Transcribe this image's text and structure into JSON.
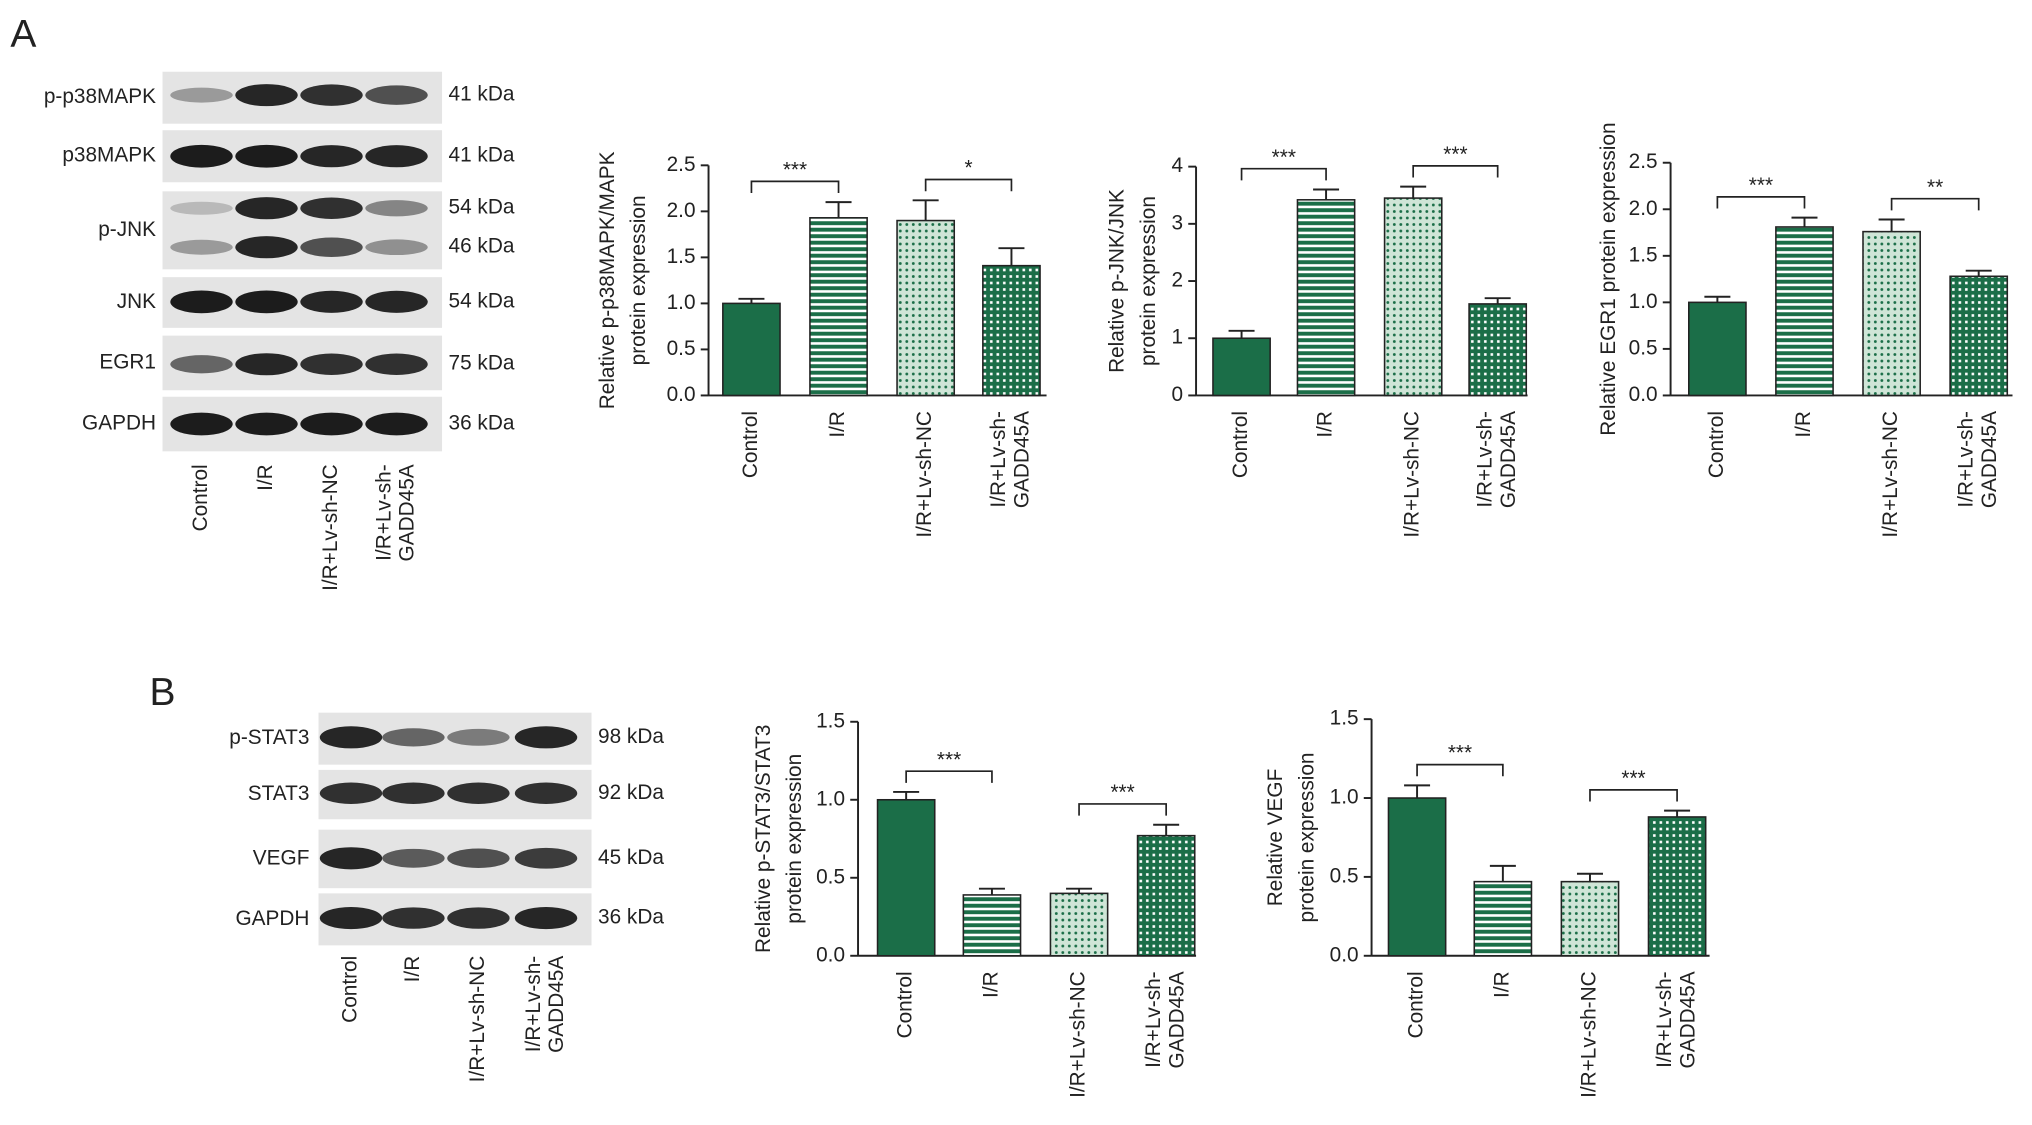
{
  "panels": [
    "A",
    "B"
  ],
  "blots": [
    {
      "rows": [
        {
          "label": "p-p38MAPK",
          "kda": [
            "41 kDa"
          ]
        },
        {
          "label": "p38MAPK",
          "kda": [
            "41 kDa"
          ]
        },
        {
          "label": "p-JNK",
          "kda": [
            "54 kDa",
            "46 kDa"
          ]
        },
        {
          "label": "JNK",
          "kda": [
            "54 kDa"
          ]
        },
        {
          "label": "EGR1",
          "kda": [
            "75 kDa"
          ]
        },
        {
          "label": "GAPDH",
          "kda": [
            "36 kDa"
          ]
        }
      ],
      "lanes": [
        [
          "Control"
        ],
        [
          "I/R"
        ],
        [
          "I/R+Lv-sh-NC"
        ],
        [
          "I/R+Lv-sh-",
          "GADD45A"
        ]
      ]
    },
    {
      "rows": [
        {
          "label": "p-STAT3",
          "kda": [
            "98 kDa"
          ]
        },
        {
          "label": "STAT3",
          "kda": [
            "92 kDa"
          ]
        },
        {
          "label": "VEGF",
          "kda": [
            "45 kDa"
          ]
        },
        {
          "label": "GAPDH",
          "kda": [
            "36 kDa"
          ]
        }
      ],
      "lanes": [
        [
          "Control"
        ],
        [
          "I/R"
        ],
        [
          "I/R+Lv-sh-NC"
        ],
        [
          "I/R+Lv-sh-",
          "GADD45A"
        ]
      ]
    }
  ],
  "chart_data": [
    {
      "type": "bar",
      "ylabel": [
        "Relative p-p38MAPK/MAPK",
        "protein expression"
      ],
      "categories": [
        [
          "Control"
        ],
        [
          "I/R"
        ],
        [
          "I/R+Lv-sh-NC"
        ],
        [
          "I/R+Lv-sh-",
          "GADD45A"
        ]
      ],
      "values": [
        1.0,
        1.93,
        1.9,
        1.41
      ],
      "errors": [
        0.05,
        0.17,
        0.22,
        0.19
      ],
      "color": "#1b6e48",
      "patterns": [
        "solid",
        "hstripe",
        "dots",
        "grid"
      ],
      "ylim": [
        0,
        2.5
      ],
      "yticks": [
        {
          "value": 0,
          "label": "0.0"
        },
        0.5,
        {
          "value": 1,
          "label": "1.0"
        },
        1.5,
        {
          "value": 2,
          "label": "2.0"
        },
        2.5
      ],
      "significance": [
        {
          "pair": [
            0,
            1
          ],
          "label": "***"
        },
        {
          "pair": [
            2,
            3
          ],
          "label": "*"
        }
      ]
    },
    {
      "type": "bar",
      "ylabel": [
        "Relative p-JNK/JNK",
        "protein expression"
      ],
      "categories": [
        [
          "Control"
        ],
        [
          "I/R"
        ],
        [
          "I/R+Lv-sh-NC"
        ],
        [
          "I/R+Lv-sh-",
          "GADD45A"
        ]
      ],
      "values": [
        1.0,
        3.42,
        3.45,
        1.6
      ],
      "errors": [
        0.13,
        0.18,
        0.2,
        0.1
      ],
      "color": "#1b6e48",
      "patterns": [
        "solid",
        "hstripe",
        "dots",
        "grid"
      ],
      "ylim": [
        0,
        4
      ],
      "yticks": [
        0,
        1,
        2,
        3,
        4
      ],
      "significance": [
        {
          "pair": [
            0,
            1
          ],
          "label": "***"
        },
        {
          "pair": [
            2,
            3
          ],
          "label": "***"
        }
      ]
    },
    {
      "type": "bar",
      "ylabel": [
        "Relative EGR1 protein expression"
      ],
      "categories": [
        [
          "Control"
        ],
        [
          "I/R"
        ],
        [
          "I/R+Lv-sh-NC"
        ],
        [
          "I/R+Lv-sh-",
          "GADD45A"
        ]
      ],
      "values": [
        1.0,
        1.81,
        1.76,
        1.28
      ],
      "errors": [
        0.06,
        0.1,
        0.13,
        0.06
      ],
      "color": "#1b6e48",
      "patterns": [
        "solid",
        "hstripe",
        "dots",
        "grid"
      ],
      "ylim": [
        0,
        2.5
      ],
      "yticks": [
        {
          "value": 0,
          "label": "0.0"
        },
        0.5,
        {
          "value": 1,
          "label": "1.0"
        },
        1.5,
        {
          "value": 2,
          "label": "2.0"
        },
        2.5
      ],
      "significance": [
        {
          "pair": [
            0,
            1
          ],
          "label": "***"
        },
        {
          "pair": [
            2,
            3
          ],
          "label": "**"
        }
      ]
    },
    {
      "type": "bar",
      "ylabel": [
        "Relative p-STAT3/STAT3",
        "protein expression"
      ],
      "categories": [
        [
          "Control"
        ],
        [
          "I/R"
        ],
        [
          "I/R+Lv-sh-NC"
        ],
        [
          "I/R+Lv-sh-",
          "GADD45A"
        ]
      ],
      "values": [
        1.0,
        0.39,
        0.4,
        0.77
      ],
      "errors": [
        0.05,
        0.04,
        0.03,
        0.07
      ],
      "color": "#1b6e48",
      "patterns": [
        "solid",
        "hstripe",
        "dots",
        "grid"
      ],
      "ylim": [
        0,
        1.5
      ],
      "yticks": [
        {
          "value": 0,
          "label": "0.0"
        },
        0.5,
        {
          "value": 1,
          "label": "1.0"
        },
        1.5
      ],
      "significance": [
        {
          "pair": [
            0,
            1
          ],
          "label": "***"
        },
        {
          "pair": [
            2,
            3
          ],
          "label": "***"
        }
      ]
    },
    {
      "type": "bar",
      "ylabel": [
        "Relative VEGF",
        "protein expression"
      ],
      "categories": [
        [
          "Control"
        ],
        [
          "I/R"
        ],
        [
          "I/R+Lv-sh-NC"
        ],
        [
          "I/R+Lv-sh-",
          "GADD45A"
        ]
      ],
      "values": [
        1.0,
        0.47,
        0.47,
        0.88
      ],
      "errors": [
        0.08,
        0.1,
        0.05,
        0.04
      ],
      "color": "#1b6e48",
      "patterns": [
        "solid",
        "hstripe",
        "dots",
        "grid"
      ],
      "ylim": [
        0,
        1.5
      ],
      "yticks": [
        {
          "value": 0,
          "label": "0.0"
        },
        0.5,
        {
          "value": 1,
          "label": "1.0"
        },
        1.5
      ],
      "significance": [
        {
          "pair": [
            0,
            1
          ],
          "label": "***"
        },
        {
          "pair": [
            2,
            3
          ],
          "label": "***"
        }
      ]
    }
  ]
}
